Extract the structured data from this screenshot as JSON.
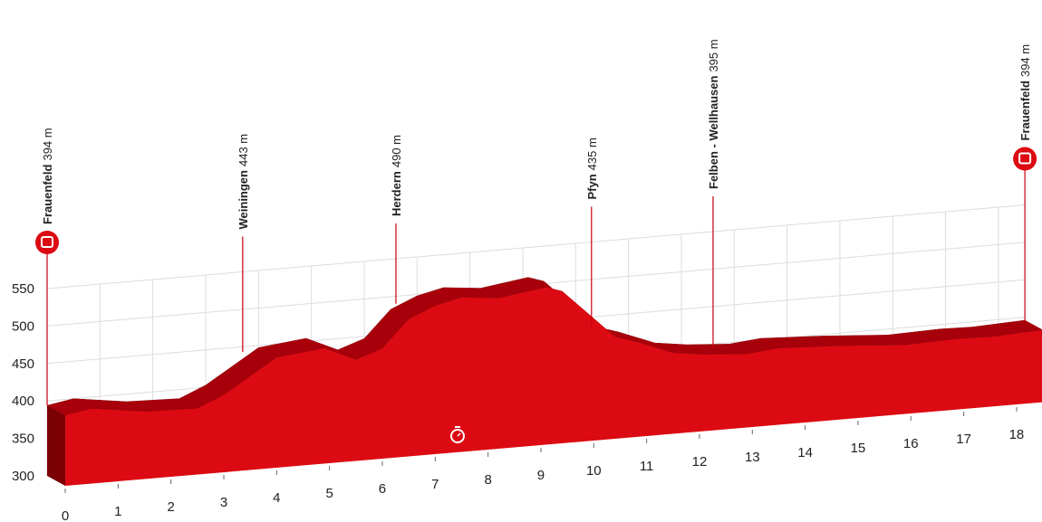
{
  "chart_data": {
    "type": "area",
    "x": [
      0,
      0.5,
      1.5,
      2.5,
      3,
      4,
      4.9,
      5.5,
      6,
      6.5,
      7,
      7.5,
      8.2,
      8.5,
      9.1,
      9.4,
      10,
      10.4,
      10.8,
      11.5,
      12.1,
      12.9,
      13.5,
      14.7,
      15.9,
      16.9,
      17.5,
      18.5
    ],
    "values": [
      394,
      400,
      390,
      388,
      403,
      447,
      454,
      435,
      447,
      483,
      498,
      506,
      501,
      504,
      510,
      503,
      463,
      436,
      427,
      408,
      402,
      398,
      402,
      398,
      392,
      394,
      393,
      396
    ],
    "color": "#dc0a12",
    "xlim": [
      0,
      18.5
    ],
    "ylim": [
      300,
      550
    ],
    "xticks": [
      0,
      1,
      2,
      3,
      4,
      5,
      6,
      7,
      8,
      9,
      10,
      11,
      12,
      13,
      14,
      15,
      16,
      17,
      18
    ],
    "yticks": [
      300,
      350,
      400,
      450,
      500,
      550
    ],
    "grid": true,
    "waypoints": [
      {
        "name": "Frauenfeld",
        "elevation": 394,
        "elevation_label": "394 m",
        "km": 0
      },
      {
        "name": "Weiningen",
        "elevation": 443,
        "elevation_label": "443 m",
        "km": 3.7
      },
      {
        "name": "Herdern",
        "elevation": 490,
        "elevation_label": "490 m",
        "km": 6.6
      },
      {
        "name": "Pfyn",
        "elevation": 435,
        "elevation_label": "435 m",
        "km": 10.3
      },
      {
        "name": "Felben - Wellhausen",
        "elevation": 395,
        "elevation_label": "395 m",
        "km": 12.6
      },
      {
        "name": "Frauenfeld",
        "elevation": 394,
        "elevation_label": "394 m",
        "km": 18.5
      }
    ]
  }
}
